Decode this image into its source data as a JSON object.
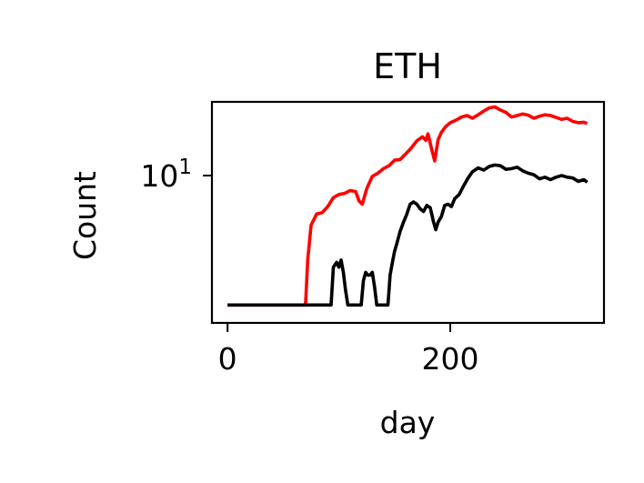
{
  "chart_data": {
    "type": "line",
    "title": "ETH",
    "xlabel": "day",
    "ylabel": "Count",
    "xlim": [
      -14,
      338
    ],
    "ylim": [
      1.6,
      25
    ],
    "yscale": "log",
    "xticks": [
      {
        "value": 0,
        "label": "0"
      },
      {
        "value": 200,
        "label": "200"
      }
    ],
    "yticks": [
      {
        "value": 10,
        "label": "10",
        "exp": "1"
      }
    ],
    "grid": false,
    "legend": "none",
    "series": [
      {
        "color": "#ff0000",
        "points": [
          [
            0,
            2
          ],
          [
            30,
            2
          ],
          [
            60,
            2
          ],
          [
            70,
            2
          ],
          [
            72,
            3.5
          ],
          [
            75,
            5.4
          ],
          [
            80,
            6.2
          ],
          [
            85,
            6.3
          ],
          [
            90,
            6.8
          ],
          [
            95,
            7.6
          ],
          [
            100,
            7.9
          ],
          [
            105,
            8.0
          ],
          [
            110,
            8.3
          ],
          [
            115,
            8.2
          ],
          [
            118,
            7.3
          ],
          [
            121,
            7.0
          ],
          [
            125,
            8.5
          ],
          [
            130,
            9.9
          ],
          [
            135,
            10.3
          ],
          [
            140,
            10.9
          ],
          [
            145,
            11.3
          ],
          [
            150,
            12.1
          ],
          [
            155,
            12.2
          ],
          [
            160,
            13.1
          ],
          [
            165,
            14.1
          ],
          [
            170,
            15.4
          ],
          [
            175,
            16.2
          ],
          [
            178,
            15.5
          ],
          [
            180,
            16.8
          ],
          [
            183,
            14.1
          ],
          [
            186,
            12.0
          ],
          [
            189,
            15.6
          ],
          [
            192,
            17.1
          ],
          [
            196,
            18.4
          ],
          [
            200,
            19.3
          ],
          [
            205,
            19.9
          ],
          [
            210,
            20.7
          ],
          [
            215,
            21.1
          ],
          [
            220,
            20.4
          ],
          [
            225,
            21.3
          ],
          [
            230,
            22.3
          ],
          [
            235,
            23.2
          ],
          [
            240,
            23.5
          ],
          [
            245,
            22.6
          ],
          [
            250,
            21.9
          ],
          [
            255,
            20.7
          ],
          [
            260,
            21.1
          ],
          [
            265,
            21.5
          ],
          [
            270,
            21.2
          ],
          [
            275,
            20.4
          ],
          [
            280,
            20.9
          ],
          [
            285,
            21.3
          ],
          [
            290,
            21.1
          ],
          [
            295,
            20.6
          ],
          [
            300,
            20.1
          ],
          [
            305,
            20.4
          ],
          [
            310,
            19.6
          ],
          [
            315,
            19.3
          ],
          [
            320,
            19.4
          ],
          [
            323,
            19.1
          ]
        ]
      },
      {
        "color": "#000000",
        "points": [
          [
            0,
            2
          ],
          [
            30,
            2
          ],
          [
            60,
            2
          ],
          [
            90,
            2
          ],
          [
            93,
            2
          ],
          [
            95,
            3.2
          ],
          [
            98,
            3.4
          ],
          [
            100,
            3.2
          ],
          [
            102,
            3.5
          ],
          [
            104,
            3.0
          ],
          [
            106,
            2.4
          ],
          [
            108,
            2
          ],
          [
            120,
            2
          ],
          [
            122,
            2.7
          ],
          [
            124,
            3.0
          ],
          [
            126,
            2.9
          ],
          [
            128,
            2.9
          ],
          [
            130,
            3.0
          ],
          [
            132,
            2.5
          ],
          [
            134,
            2
          ],
          [
            144,
            2
          ],
          [
            146,
            2.9
          ],
          [
            148,
            3.4
          ],
          [
            150,
            3.9
          ],
          [
            152,
            4.3
          ],
          [
            155,
            5.0
          ],
          [
            158,
            5.6
          ],
          [
            161,
            6.2
          ],
          [
            164,
            7.0
          ],
          [
            167,
            7.2
          ],
          [
            170,
            7.0
          ],
          [
            173,
            6.6
          ],
          [
            176,
            6.4
          ],
          [
            179,
            6.9
          ],
          [
            182,
            6.7
          ],
          [
            185,
            5.6
          ],
          [
            187,
            5.1
          ],
          [
            189,
            5.6
          ],
          [
            192,
            6.0
          ],
          [
            195,
            6.9
          ],
          [
            198,
            7.0
          ],
          [
            201,
            6.8
          ],
          [
            204,
            7.5
          ],
          [
            208,
            7.9
          ],
          [
            212,
            8.8
          ],
          [
            216,
            9.7
          ],
          [
            220,
            10.5
          ],
          [
            225,
            11.0
          ],
          [
            230,
            10.7
          ],
          [
            235,
            11.2
          ],
          [
            240,
            11.4
          ],
          [
            245,
            11.3
          ],
          [
            250,
            10.8
          ],
          [
            255,
            10.9
          ],
          [
            260,
            11.1
          ],
          [
            265,
            10.6
          ],
          [
            270,
            10.3
          ],
          [
            275,
            10.1
          ],
          [
            280,
            9.6
          ],
          [
            285,
            9.8
          ],
          [
            290,
            9.5
          ],
          [
            295,
            9.8
          ],
          [
            300,
            10.0
          ],
          [
            305,
            9.8
          ],
          [
            310,
            9.7
          ],
          [
            315,
            9.3
          ],
          [
            320,
            9.5
          ],
          [
            323,
            9.2
          ]
        ]
      }
    ]
  }
}
